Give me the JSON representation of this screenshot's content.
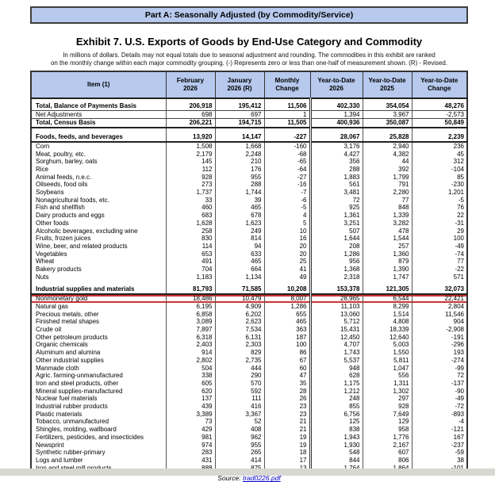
{
  "banner": {
    "text": "Part A: Seasonally Adjusted (by Commodity/Service)"
  },
  "title": "Exhibit 7. U.S. Exports of Goods by End-Use Category and Commodity",
  "subtitle_line1": "In millions of dollars. Details may not equal totals due to seasonal adjustment and rounding. The commodities in this exhibit are ranked",
  "subtitle_line2": "on the monthly change within each major commodity grouping. (-) Represents zero or less than one-half of measurement shown. (R) - Revised.",
  "columns": [
    "Item (1)",
    "February\n2026",
    "January\n2026 (R)",
    "Monthly\nChange",
    "Year-to-Date\n2026",
    "Year-to-Date\n2025",
    "Year-to-Date\nChange"
  ],
  "rows": [
    {
      "type": "total",
      "label": "Total, Balance of Payments Basis",
      "values": [
        "206,918",
        "195,412",
        "11,506",
        "402,330",
        "354,054",
        "48,276"
      ]
    },
    {
      "type": "adj",
      "label": "Net Adjustments",
      "values": [
        "698",
        "697",
        "1",
        "1,394",
        "3,967",
        "-2,573"
      ]
    },
    {
      "type": "total2",
      "label": "Total, Census Basis",
      "values": [
        "206,221",
        "194,715",
        "11,505",
        "400,936",
        "350,087",
        "50,849"
      ]
    },
    {
      "type": "section",
      "label": "Foods, feeds, and beverages",
      "values": [
        "13,920",
        "14,147",
        "-227",
        "28,067",
        "25,828",
        "2,239"
      ]
    },
    {
      "type": "item",
      "label": "Corn",
      "values": [
        "1,508",
        "1,668",
        "-160",
        "3,176",
        "2,940",
        "236"
      ]
    },
    {
      "type": "item",
      "label": "Meat, poultry, etc.",
      "values": [
        "2,179",
        "2,248",
        "-68",
        "4,427",
        "4,382",
        "45"
      ]
    },
    {
      "type": "item",
      "label": "Sorghum, barley, oats",
      "values": [
        "145",
        "210",
        "-65",
        "356",
        "44",
        "312"
      ]
    },
    {
      "type": "item",
      "label": "Rice",
      "values": [
        "112",
        "176",
        "-64",
        "288",
        "392",
        "-104"
      ]
    },
    {
      "type": "item",
      "label": "Animal feeds, n.e.c.",
      "values": [
        "928",
        "955",
        "-27",
        "1,883",
        "1,799",
        "85"
      ]
    },
    {
      "type": "item",
      "label": "Oilseeds, food oils",
      "values": [
        "273",
        "288",
        "-16",
        "561",
        "791",
        "-230"
      ]
    },
    {
      "type": "item",
      "label": "Soybeans",
      "values": [
        "1,737",
        "1,744",
        "-7",
        "3,481",
        "2,280",
        "1,201"
      ]
    },
    {
      "type": "item",
      "label": "Nonagricultural foods, etc.",
      "values": [
        "33",
        "39",
        "-6",
        "72",
        "77",
        "-5"
      ]
    },
    {
      "type": "item",
      "label": "Fish and shellfish",
      "values": [
        "460",
        "465",
        "-5",
        "925",
        "848",
        "76"
      ]
    },
    {
      "type": "item",
      "label": "Dairy products and eggs",
      "values": [
        "683",
        "678",
        "4",
        "1,361",
        "1,339",
        "22"
      ]
    },
    {
      "type": "item",
      "label": "Other foods",
      "values": [
        "1,628",
        "1,623",
        "5",
        "3,251",
        "3,282",
        "-31"
      ]
    },
    {
      "type": "item",
      "label": "Alcoholic beverages, excluding wine",
      "values": [
        "258",
        "249",
        "10",
        "507",
        "478",
        "29"
      ]
    },
    {
      "type": "item",
      "label": "Fruits, frozen juices",
      "values": [
        "830",
        "814",
        "16",
        "1,644",
        "1,544",
        "100"
      ]
    },
    {
      "type": "item",
      "label": "Wine, beer, and related products",
      "values": [
        "114",
        "94",
        "20",
        "208",
        "257",
        "-49"
      ]
    },
    {
      "type": "item",
      "label": "Vegetables",
      "values": [
        "653",
        "633",
        "20",
        "1,286",
        "1,360",
        "-74"
      ]
    },
    {
      "type": "item",
      "label": "Wheat",
      "values": [
        "491",
        "465",
        "25",
        "956",
        "879",
        "77"
      ]
    },
    {
      "type": "item",
      "label": "Bakery products",
      "values": [
        "704",
        "664",
        "41",
        "1,368",
        "1,390",
        "-22"
      ]
    },
    {
      "type": "item",
      "label": "Nuts",
      "values": [
        "1,183",
        "1,134",
        "49",
        "2,318",
        "1,747",
        "571"
      ]
    },
    {
      "type": "section",
      "label": "Industrial supplies and materials",
      "values": [
        "81,793",
        "71,585",
        "10,208",
        "153,378",
        "121,305",
        "32,073"
      ]
    },
    {
      "type": "item",
      "highlight": true,
      "label": "Nonmonetary gold",
      "values": [
        "18,486",
        "10,479",
        "8,007",
        "28,965",
        "6,544",
        "22,421"
      ]
    },
    {
      "type": "item",
      "label": "Natural gas",
      "values": [
        "6,195",
        "4,909",
        "1,286",
        "11,103",
        "8,299",
        "2,804"
      ]
    },
    {
      "type": "item",
      "label": "Precious metals, other",
      "values": [
        "6,858",
        "6,202",
        "655",
        "13,060",
        "1,514",
        "11,546"
      ]
    },
    {
      "type": "item",
      "label": "Finished metal shapes",
      "values": [
        "3,089",
        "2,623",
        "465",
        "5,712",
        "4,808",
        "904"
      ]
    },
    {
      "type": "item",
      "label": "Crude oil",
      "values": [
        "7,897",
        "7,534",
        "363",
        "15,431",
        "18,339",
        "-2,908"
      ]
    },
    {
      "type": "item",
      "label": "Other petroleum products",
      "values": [
        "6,318",
        "6,131",
        "187",
        "12,450",
        "12,640",
        "-191"
      ]
    },
    {
      "type": "item",
      "label": "Organic chemicals",
      "values": [
        "2,403",
        "2,303",
        "100",
        "4,707",
        "5,003",
        "-296"
      ]
    },
    {
      "type": "item",
      "label": "Aluminum and alumina",
      "values": [
        "914",
        "829",
        "86",
        "1,743",
        "1,550",
        "193"
      ]
    },
    {
      "type": "item",
      "label": "Other industrial supplies",
      "values": [
        "2,802",
        "2,735",
        "67",
        "5,537",
        "5,811",
        "-274"
      ]
    },
    {
      "type": "item",
      "label": "Manmade cloth",
      "values": [
        "504",
        "444",
        "60",
        "948",
        "1,047",
        "-99"
      ]
    },
    {
      "type": "item",
      "label": "Agric. farming-unmanufactured",
      "values": [
        "338",
        "290",
        "47",
        "628",
        "556",
        "72"
      ]
    },
    {
      "type": "item",
      "label": "Iron and steel products, other",
      "values": [
        "605",
        "570",
        "35",
        "1,175",
        "1,311",
        "-137"
      ]
    },
    {
      "type": "item",
      "label": "Mineral supplies-manufactured",
      "values": [
        "620",
        "592",
        "28",
        "1,212",
        "1,302",
        "-90"
      ]
    },
    {
      "type": "item",
      "label": "Nuclear fuel materials",
      "values": [
        "137",
        "111",
        "26",
        "248",
        "297",
        "-49"
      ]
    },
    {
      "type": "item",
      "label": "Industrial rubber products",
      "values": [
        "439",
        "416",
        "23",
        "855",
        "928",
        "-72"
      ]
    },
    {
      "type": "item",
      "label": "Plastic materials",
      "values": [
        "3,389",
        "3,367",
        "23",
        "6,756",
        "7,649",
        "-893"
      ]
    },
    {
      "type": "item",
      "label": "Tobacco, unmanufactured",
      "values": [
        "73",
        "52",
        "21",
        "125",
        "129",
        "-4"
      ]
    },
    {
      "type": "item",
      "label": "Shingles, molding, wallboard",
      "values": [
        "429",
        "408",
        "21",
        "838",
        "958",
        "-121"
      ]
    },
    {
      "type": "item",
      "label": "Fertilizers, pesticides, and insecticides",
      "values": [
        "981",
        "962",
        "19",
        "1,943",
        "1,776",
        "167"
      ]
    },
    {
      "type": "item",
      "label": "Newsprint",
      "values": [
        "974",
        "955",
        "19",
        "1,930",
        "2,167",
        "-237"
      ]
    },
    {
      "type": "item",
      "label": "Synthetic rubber-primary",
      "values": [
        "283",
        "265",
        "18",
        "548",
        "607",
        "-59"
      ]
    },
    {
      "type": "item",
      "label": "Logs and lumber",
      "values": [
        "431",
        "414",
        "17",
        "844",
        "806",
        "38"
      ]
    },
    {
      "type": "item",
      "label": "Iron and steel mill products",
      "values": [
        "888",
        "875",
        "13",
        "1,764",
        "1,864",
        "-101"
      ]
    }
  ],
  "source": {
    "prefix": "Source: ",
    "link": "trad0226.pdf"
  },
  "colors": {
    "header_bg": "#b7c9ed",
    "highlight_red": "#cc3333",
    "link_blue": "#0000cc",
    "border_dark": "#333333"
  }
}
